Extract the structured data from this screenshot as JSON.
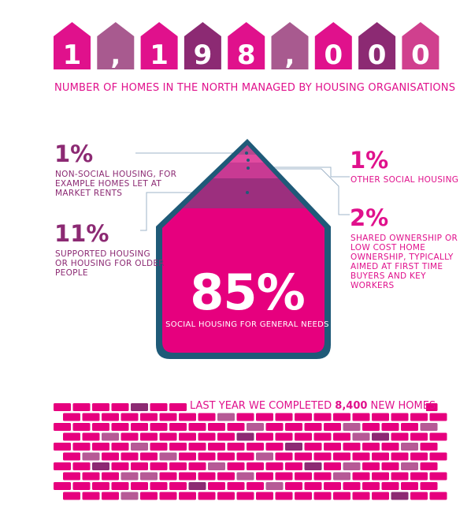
{
  "headline": {
    "digits": [
      "1",
      ",",
      "1",
      "9",
      "8",
      ",",
      "0",
      "0",
      "0"
    ],
    "colors": [
      "#e0118c",
      "#a85a8f",
      "#e0118c",
      "#8c2a73",
      "#e0118c",
      "#a85a8f",
      "#e0118c",
      "#8c2a73",
      "#d0408e"
    ],
    "subtitle": "NUMBER OF HOMES IN THE NORTH MANAGED BY HOUSING ORGANISATIONS"
  },
  "breakdown": {
    "main": {
      "value": "85%",
      "label": "SOCIAL HOUSING FOR GENERAL NEEDS"
    },
    "left": [
      {
        "value": "1%",
        "label_lines": [
          "NON-SOCIAL HOUSING, FOR",
          "EXAMPLE HOMES LET AT",
          "MARKET RENTS"
        ]
      },
      {
        "value": "11%",
        "label_lines": [
          "SUPPORTED HOUSING",
          "OR HOUSING FOR OLDER",
          "PEOPLE"
        ]
      }
    ],
    "right": [
      {
        "value": "1%",
        "label_lines": [
          "OTHER SOCIAL HOUSING"
        ]
      },
      {
        "value": "2%",
        "label_lines": [
          "SHARED OWNERSHIP OR",
          "LOW COST HOME",
          "OWNERSHIP, TYPICALLY",
          "AIMED AT FIRST TIME",
          "BUYERS AND KEY WORKERS"
        ]
      }
    ],
    "colors": {
      "main": "#e6007e",
      "outline": "#1f5a78",
      "band_supported": "#9c2f7e",
      "band_shared": "#c83a93",
      "band_other": "#e24aa0",
      "band_nonsocial": "#b8488f",
      "leader_line": "#9fb4c8"
    }
  },
  "bricks": {
    "caption_prefix": "LAST YEAR WE COMPLETED ",
    "caption_number": "8,400",
    "caption_suffix": " NEW HOMES",
    "colors": {
      "main": "#e6007e",
      "muted": "#b65a96",
      "dark": "#8c2a73"
    }
  }
}
